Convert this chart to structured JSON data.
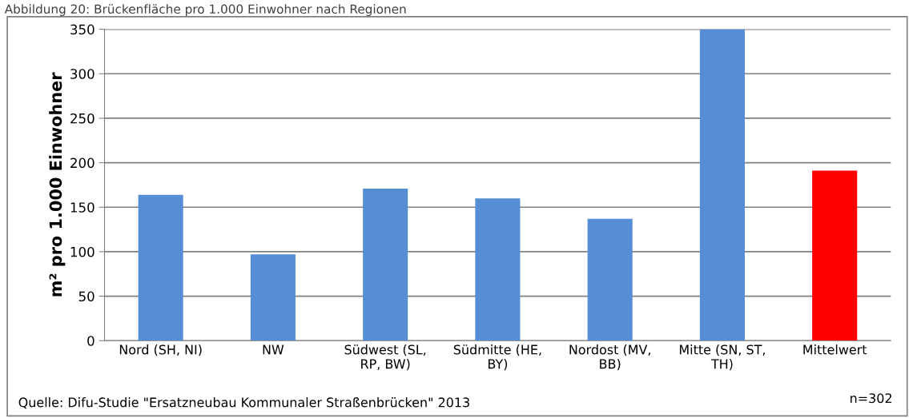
{
  "chart_data": {
    "type": "bar",
    "title": "Abbildung 20: Brückenfläche pro 1.000 Einwohner nach Regionen",
    "ylabel": "m² pro 1.000 Einwohner",
    "categories": [
      "Nord (SH, NI)",
      "NW",
      "Südwest (SL,\nRP, BW)",
      "Südmitte (HE,\nBY)",
      "Nordost (MV,\nBB)",
      "Mitte (SN, ST,\nTH)",
      "Mittelwert"
    ],
    "values": [
      164,
      97,
      171,
      160,
      137,
      350,
      191
    ],
    "colors": [
      "#558ed5",
      "#558ed5",
      "#558ed5",
      "#558ed5",
      "#558ed5",
      "#558ed5",
      "#ff0000"
    ],
    "ylim": [
      0,
      350
    ],
    "yticks": [
      0,
      50,
      100,
      150,
      200,
      250,
      300,
      350
    ],
    "grid": "y",
    "legend": false,
    "annotations": [
      "Quelle: Difu-Studie \"Ersatzneubau Kommunaler Straßenbrücken\" 2013",
      "n=302"
    ]
  }
}
